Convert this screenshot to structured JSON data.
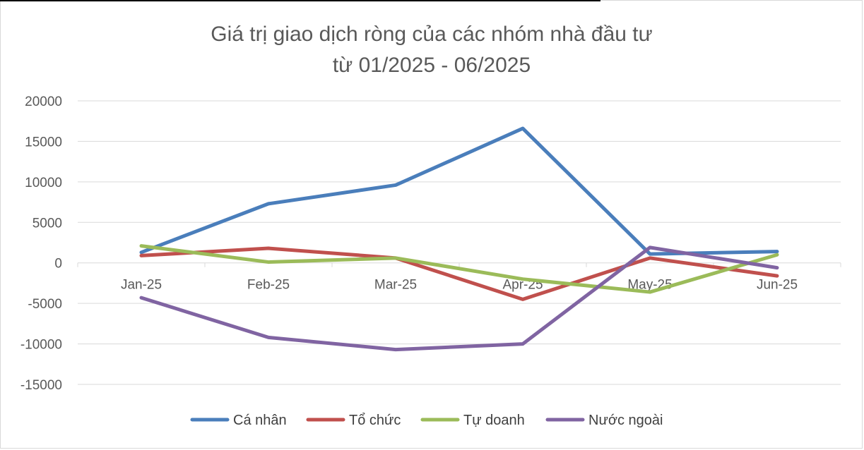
{
  "chart_data": {
    "type": "line",
    "title": "Giá trị giao dịch ròng của các nhóm nhà đầu tư",
    "subtitle": "từ 01/2025 - 06/2025",
    "categories": [
      "Jan-25",
      "Feb-25",
      "Mar-25",
      "Apr-25",
      "May-25",
      "Jun-25"
    ],
    "ylim": [
      -15000,
      20000
    ],
    "yticks": [
      20000,
      15000,
      10000,
      5000,
      0,
      -5000,
      -10000,
      -15000
    ],
    "grid": true,
    "legend_position": "bottom",
    "series": [
      {
        "name": "Cá nhân",
        "color": "#4a7ebb",
        "values": [
          1300,
          7300,
          9600,
          16600,
          1100,
          1400
        ]
      },
      {
        "name": "Tổ chức",
        "color": "#c0504d",
        "values": [
          900,
          1800,
          600,
          -4500,
          600,
          -1600
        ]
      },
      {
        "name": "Tự doanh",
        "color": "#9bbb59",
        "values": [
          2100,
          100,
          600,
          -2000,
          -3600,
          1000
        ]
      },
      {
        "name": "Nước ngoài",
        "color": "#8064a2",
        "values": [
          -4300,
          -9200,
          -10700,
          -10000,
          1900,
          -600
        ]
      }
    ]
  }
}
